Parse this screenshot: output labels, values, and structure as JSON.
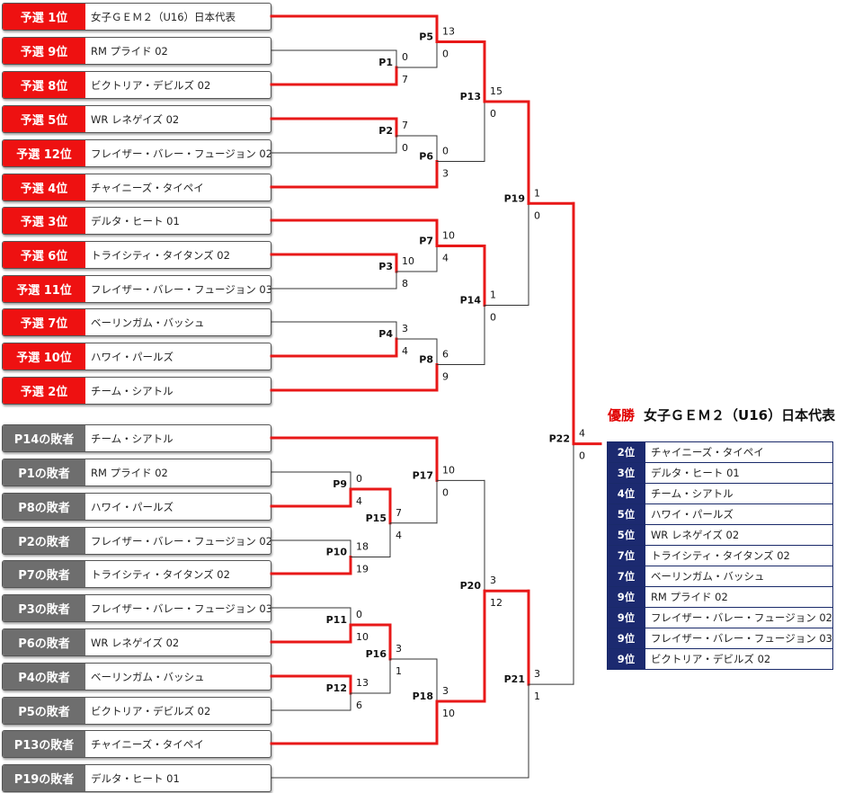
{
  "teams": [
    {
      "seed": "予選 1位",
      "name": "女子ＧＥＭ２（U16）日本代表",
      "group": "prelim"
    },
    {
      "seed": "予選 9位",
      "name": "RM プライド 02",
      "group": "prelim"
    },
    {
      "seed": "予選 8位",
      "name": "ビクトリア・デビルズ 02",
      "group": "prelim"
    },
    {
      "seed": "予選 5位",
      "name": "WR レネゲイズ 02",
      "group": "prelim"
    },
    {
      "seed": "予選 12位",
      "name": "フレイザー・バレー・フュージョン 02",
      "group": "prelim"
    },
    {
      "seed": "予選 4位",
      "name": "チャイニーズ・タイペイ",
      "group": "prelim"
    },
    {
      "seed": "予選 3位",
      "name": "デルタ・ヒート 01",
      "group": "prelim"
    },
    {
      "seed": "予選 6位",
      "name": "トライシティ・タイタンズ 02",
      "group": "prelim"
    },
    {
      "seed": "予選 11位",
      "name": "フレイザー・バレー・フュージョン 03",
      "group": "prelim"
    },
    {
      "seed": "予選 7位",
      "name": "ベーリンガム・バッシュ",
      "group": "prelim"
    },
    {
      "seed": "予選 10位",
      "name": "ハワイ・パールズ",
      "group": "prelim"
    },
    {
      "seed": "予選 2位",
      "name": "チーム・シアトル",
      "group": "prelim"
    },
    {
      "seed": "P14の敗者",
      "name": "チーム・シアトル",
      "group": "loser"
    },
    {
      "seed": "P1の敗者",
      "name": "RM プライド 02",
      "group": "loser"
    },
    {
      "seed": "P8の敗者",
      "name": "ハワイ・パールズ",
      "group": "loser"
    },
    {
      "seed": "P2の敗者",
      "name": "フレイザー・バレー・フュージョン 02",
      "group": "loser"
    },
    {
      "seed": "P7の敗者",
      "name": "トライシティ・タイタンズ 02",
      "group": "loser"
    },
    {
      "seed": "P3の敗者",
      "name": "フレイザー・バレー・フュージョン 03",
      "group": "loser"
    },
    {
      "seed": "P6の敗者",
      "name": "WR レネゲイズ 02",
      "group": "loser"
    },
    {
      "seed": "P4の敗者",
      "name": "ベーリンガム・バッシュ",
      "group": "loser"
    },
    {
      "seed": "P5の敗者",
      "name": "ビクトリア・デビルズ 02",
      "group": "loser"
    },
    {
      "seed": "P13の敗者",
      "name": "チャイニーズ・タイペイ",
      "group": "loser"
    },
    {
      "seed": "P19の敗者",
      "name": "デルタ・ヒート 01",
      "group": "loser"
    }
  ],
  "matches": [
    {
      "id": "P1",
      "a": "t1",
      "b": "t2",
      "sa": "0",
      "sb": "7",
      "winner": "b"
    },
    {
      "id": "P2",
      "a": "t3",
      "b": "t4",
      "sa": "7",
      "sb": "0",
      "winner": "a"
    },
    {
      "id": "P3",
      "a": "t7",
      "b": "t8",
      "sa": "10",
      "sb": "8",
      "winner": "a"
    },
    {
      "id": "P4",
      "a": "t9",
      "b": "t10",
      "sa": "3",
      "sb": "4",
      "winner": "b"
    },
    {
      "id": "P5",
      "a": "t0",
      "b": "P1",
      "sa": "13",
      "sb": "0",
      "winner": "a"
    },
    {
      "id": "P6",
      "a": "P2",
      "b": "t5",
      "sa": "0",
      "sb": "3",
      "winner": "b"
    },
    {
      "id": "P7",
      "a": "t6",
      "b": "P3",
      "sa": "10",
      "sb": "4",
      "winner": "a"
    },
    {
      "id": "P8",
      "a": "P4",
      "b": "t11",
      "sa": "6",
      "sb": "9",
      "winner": "b"
    },
    {
      "id": "P13",
      "a": "P5",
      "b": "P6",
      "sa": "15",
      "sb": "0",
      "winner": "a"
    },
    {
      "id": "P14",
      "a": "P7",
      "b": "P8",
      "sa": "1",
      "sb": "0",
      "winner": "a"
    },
    {
      "id": "P19",
      "a": "P13",
      "b": "P14",
      "sa": "1",
      "sb": "0",
      "winner": "a"
    },
    {
      "id": "P9",
      "a": "t13",
      "b": "t14",
      "sa": "0",
      "sb": "4",
      "winner": "b"
    },
    {
      "id": "P10",
      "a": "t15",
      "b": "t16",
      "sa": "18",
      "sb": "19",
      "winner": "b"
    },
    {
      "id": "P11",
      "a": "t17",
      "b": "t18",
      "sa": "0",
      "sb": "10",
      "winner": "b"
    },
    {
      "id": "P12",
      "a": "t19",
      "b": "t20",
      "sa": "13",
      "sb": "6",
      "winner": "a"
    },
    {
      "id": "P15",
      "a": "P9",
      "b": "P10",
      "sa": "7",
      "sb": "4",
      "winner": "a"
    },
    {
      "id": "P16",
      "a": "P11",
      "b": "P12",
      "sa": "3",
      "sb": "1",
      "winner": "a"
    },
    {
      "id": "P17",
      "a": "t12",
      "b": "P15",
      "sa": "10",
      "sb": "0",
      "winner": "a"
    },
    {
      "id": "P18",
      "a": "P16",
      "b": "t21",
      "sa": "3",
      "sb": "10",
      "winner": "b"
    },
    {
      "id": "P20",
      "a": "P17",
      "b": "P18",
      "sa": "3",
      "sb": "12",
      "winner": "b"
    },
    {
      "id": "P21",
      "a": "P20",
      "b": "t22",
      "sa": "3",
      "sb": "1",
      "winner": "a"
    },
    {
      "id": "P22",
      "a": "P19",
      "b": "P21",
      "sa": "4",
      "sb": "0",
      "winner": "a"
    }
  ],
  "champion": {
    "label": "優勝",
    "team": "女子ＧＥＭ２（U16）日本代表"
  },
  "ranking": [
    {
      "rank": "2位",
      "team": "チャイニーズ・タイペイ"
    },
    {
      "rank": "3位",
      "team": "デルタ・ヒート 01"
    },
    {
      "rank": "4位",
      "team": "チーム・シアトル"
    },
    {
      "rank": "5位",
      "team": "ハワイ・パールズ"
    },
    {
      "rank": "5位",
      "team": "WR レネゲイズ 02"
    },
    {
      "rank": "7位",
      "team": "トライシティ・タイタンズ 02"
    },
    {
      "rank": "7位",
      "team": "ベーリンガム・バッシュ"
    },
    {
      "rank": "9位",
      "team": "RM プライド 02"
    },
    {
      "rank": "9位",
      "team": "フレイザー・バレー・フュージョン 02"
    },
    {
      "rank": "9位",
      "team": "フレイザー・バレー・フュージョン 03"
    },
    {
      "rank": "9位",
      "team": "ビクトリア・デビルズ 02"
    }
  ],
  "colors": {
    "winner_line": "#e81818",
    "loser_line": "#333333",
    "prelim_seed": "#ee1111",
    "loser_seed": "#6e6e6e",
    "rank_bg": "#1c2a70"
  }
}
